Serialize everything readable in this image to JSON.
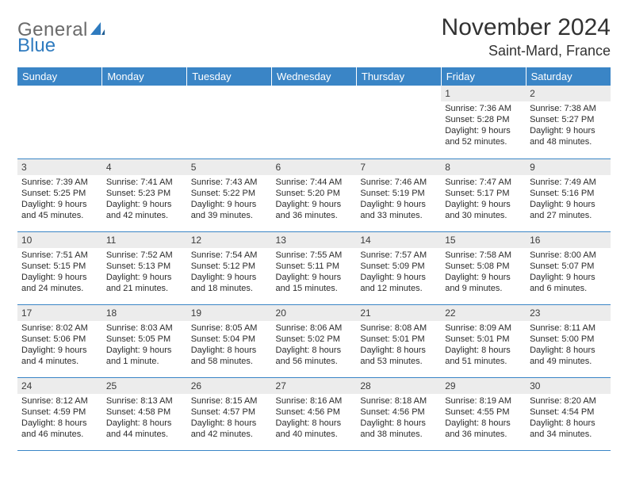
{
  "brand": {
    "part1": "General",
    "part2": "Blue"
  },
  "title": "November 2024",
  "location": "Saint-Mard, France",
  "colors": {
    "header_bg": "#3a85c6",
    "header_text": "#ffffff",
    "daynum_bg": "#ececec",
    "cell_border": "#3a85c6",
    "page_bg": "#ffffff",
    "title_color": "#323232"
  },
  "day_headers": [
    "Sunday",
    "Monday",
    "Tuesday",
    "Wednesday",
    "Thursday",
    "Friday",
    "Saturday"
  ],
  "weeks": [
    [
      {
        "n": "",
        "sunrise": "",
        "sunset": "",
        "daylight": ""
      },
      {
        "n": "",
        "sunrise": "",
        "sunset": "",
        "daylight": ""
      },
      {
        "n": "",
        "sunrise": "",
        "sunset": "",
        "daylight": ""
      },
      {
        "n": "",
        "sunrise": "",
        "sunset": "",
        "daylight": ""
      },
      {
        "n": "",
        "sunrise": "",
        "sunset": "",
        "daylight": ""
      },
      {
        "n": "1",
        "sunrise": "Sunrise: 7:36 AM",
        "sunset": "Sunset: 5:28 PM",
        "daylight": "Daylight: 9 hours and 52 minutes."
      },
      {
        "n": "2",
        "sunrise": "Sunrise: 7:38 AM",
        "sunset": "Sunset: 5:27 PM",
        "daylight": "Daylight: 9 hours and 48 minutes."
      }
    ],
    [
      {
        "n": "3",
        "sunrise": "Sunrise: 7:39 AM",
        "sunset": "Sunset: 5:25 PM",
        "daylight": "Daylight: 9 hours and 45 minutes."
      },
      {
        "n": "4",
        "sunrise": "Sunrise: 7:41 AM",
        "sunset": "Sunset: 5:23 PM",
        "daylight": "Daylight: 9 hours and 42 minutes."
      },
      {
        "n": "5",
        "sunrise": "Sunrise: 7:43 AM",
        "sunset": "Sunset: 5:22 PM",
        "daylight": "Daylight: 9 hours and 39 minutes."
      },
      {
        "n": "6",
        "sunrise": "Sunrise: 7:44 AM",
        "sunset": "Sunset: 5:20 PM",
        "daylight": "Daylight: 9 hours and 36 minutes."
      },
      {
        "n": "7",
        "sunrise": "Sunrise: 7:46 AM",
        "sunset": "Sunset: 5:19 PM",
        "daylight": "Daylight: 9 hours and 33 minutes."
      },
      {
        "n": "8",
        "sunrise": "Sunrise: 7:47 AM",
        "sunset": "Sunset: 5:17 PM",
        "daylight": "Daylight: 9 hours and 30 minutes."
      },
      {
        "n": "9",
        "sunrise": "Sunrise: 7:49 AM",
        "sunset": "Sunset: 5:16 PM",
        "daylight": "Daylight: 9 hours and 27 minutes."
      }
    ],
    [
      {
        "n": "10",
        "sunrise": "Sunrise: 7:51 AM",
        "sunset": "Sunset: 5:15 PM",
        "daylight": "Daylight: 9 hours and 24 minutes."
      },
      {
        "n": "11",
        "sunrise": "Sunrise: 7:52 AM",
        "sunset": "Sunset: 5:13 PM",
        "daylight": "Daylight: 9 hours and 21 minutes."
      },
      {
        "n": "12",
        "sunrise": "Sunrise: 7:54 AM",
        "sunset": "Sunset: 5:12 PM",
        "daylight": "Daylight: 9 hours and 18 minutes."
      },
      {
        "n": "13",
        "sunrise": "Sunrise: 7:55 AM",
        "sunset": "Sunset: 5:11 PM",
        "daylight": "Daylight: 9 hours and 15 minutes."
      },
      {
        "n": "14",
        "sunrise": "Sunrise: 7:57 AM",
        "sunset": "Sunset: 5:09 PM",
        "daylight": "Daylight: 9 hours and 12 minutes."
      },
      {
        "n": "15",
        "sunrise": "Sunrise: 7:58 AM",
        "sunset": "Sunset: 5:08 PM",
        "daylight": "Daylight: 9 hours and 9 minutes."
      },
      {
        "n": "16",
        "sunrise": "Sunrise: 8:00 AM",
        "sunset": "Sunset: 5:07 PM",
        "daylight": "Daylight: 9 hours and 6 minutes."
      }
    ],
    [
      {
        "n": "17",
        "sunrise": "Sunrise: 8:02 AM",
        "sunset": "Sunset: 5:06 PM",
        "daylight": "Daylight: 9 hours and 4 minutes."
      },
      {
        "n": "18",
        "sunrise": "Sunrise: 8:03 AM",
        "sunset": "Sunset: 5:05 PM",
        "daylight": "Daylight: 9 hours and 1 minute."
      },
      {
        "n": "19",
        "sunrise": "Sunrise: 8:05 AM",
        "sunset": "Sunset: 5:04 PM",
        "daylight": "Daylight: 8 hours and 58 minutes."
      },
      {
        "n": "20",
        "sunrise": "Sunrise: 8:06 AM",
        "sunset": "Sunset: 5:02 PM",
        "daylight": "Daylight: 8 hours and 56 minutes."
      },
      {
        "n": "21",
        "sunrise": "Sunrise: 8:08 AM",
        "sunset": "Sunset: 5:01 PM",
        "daylight": "Daylight: 8 hours and 53 minutes."
      },
      {
        "n": "22",
        "sunrise": "Sunrise: 8:09 AM",
        "sunset": "Sunset: 5:01 PM",
        "daylight": "Daylight: 8 hours and 51 minutes."
      },
      {
        "n": "23",
        "sunrise": "Sunrise: 8:11 AM",
        "sunset": "Sunset: 5:00 PM",
        "daylight": "Daylight: 8 hours and 49 minutes."
      }
    ],
    [
      {
        "n": "24",
        "sunrise": "Sunrise: 8:12 AM",
        "sunset": "Sunset: 4:59 PM",
        "daylight": "Daylight: 8 hours and 46 minutes."
      },
      {
        "n": "25",
        "sunrise": "Sunrise: 8:13 AM",
        "sunset": "Sunset: 4:58 PM",
        "daylight": "Daylight: 8 hours and 44 minutes."
      },
      {
        "n": "26",
        "sunrise": "Sunrise: 8:15 AM",
        "sunset": "Sunset: 4:57 PM",
        "daylight": "Daylight: 8 hours and 42 minutes."
      },
      {
        "n": "27",
        "sunrise": "Sunrise: 8:16 AM",
        "sunset": "Sunset: 4:56 PM",
        "daylight": "Daylight: 8 hours and 40 minutes."
      },
      {
        "n": "28",
        "sunrise": "Sunrise: 8:18 AM",
        "sunset": "Sunset: 4:56 PM",
        "daylight": "Daylight: 8 hours and 38 minutes."
      },
      {
        "n": "29",
        "sunrise": "Sunrise: 8:19 AM",
        "sunset": "Sunset: 4:55 PM",
        "daylight": "Daylight: 8 hours and 36 minutes."
      },
      {
        "n": "30",
        "sunrise": "Sunrise: 8:20 AM",
        "sunset": "Sunset: 4:54 PM",
        "daylight": "Daylight: 8 hours and 34 minutes."
      }
    ]
  ]
}
